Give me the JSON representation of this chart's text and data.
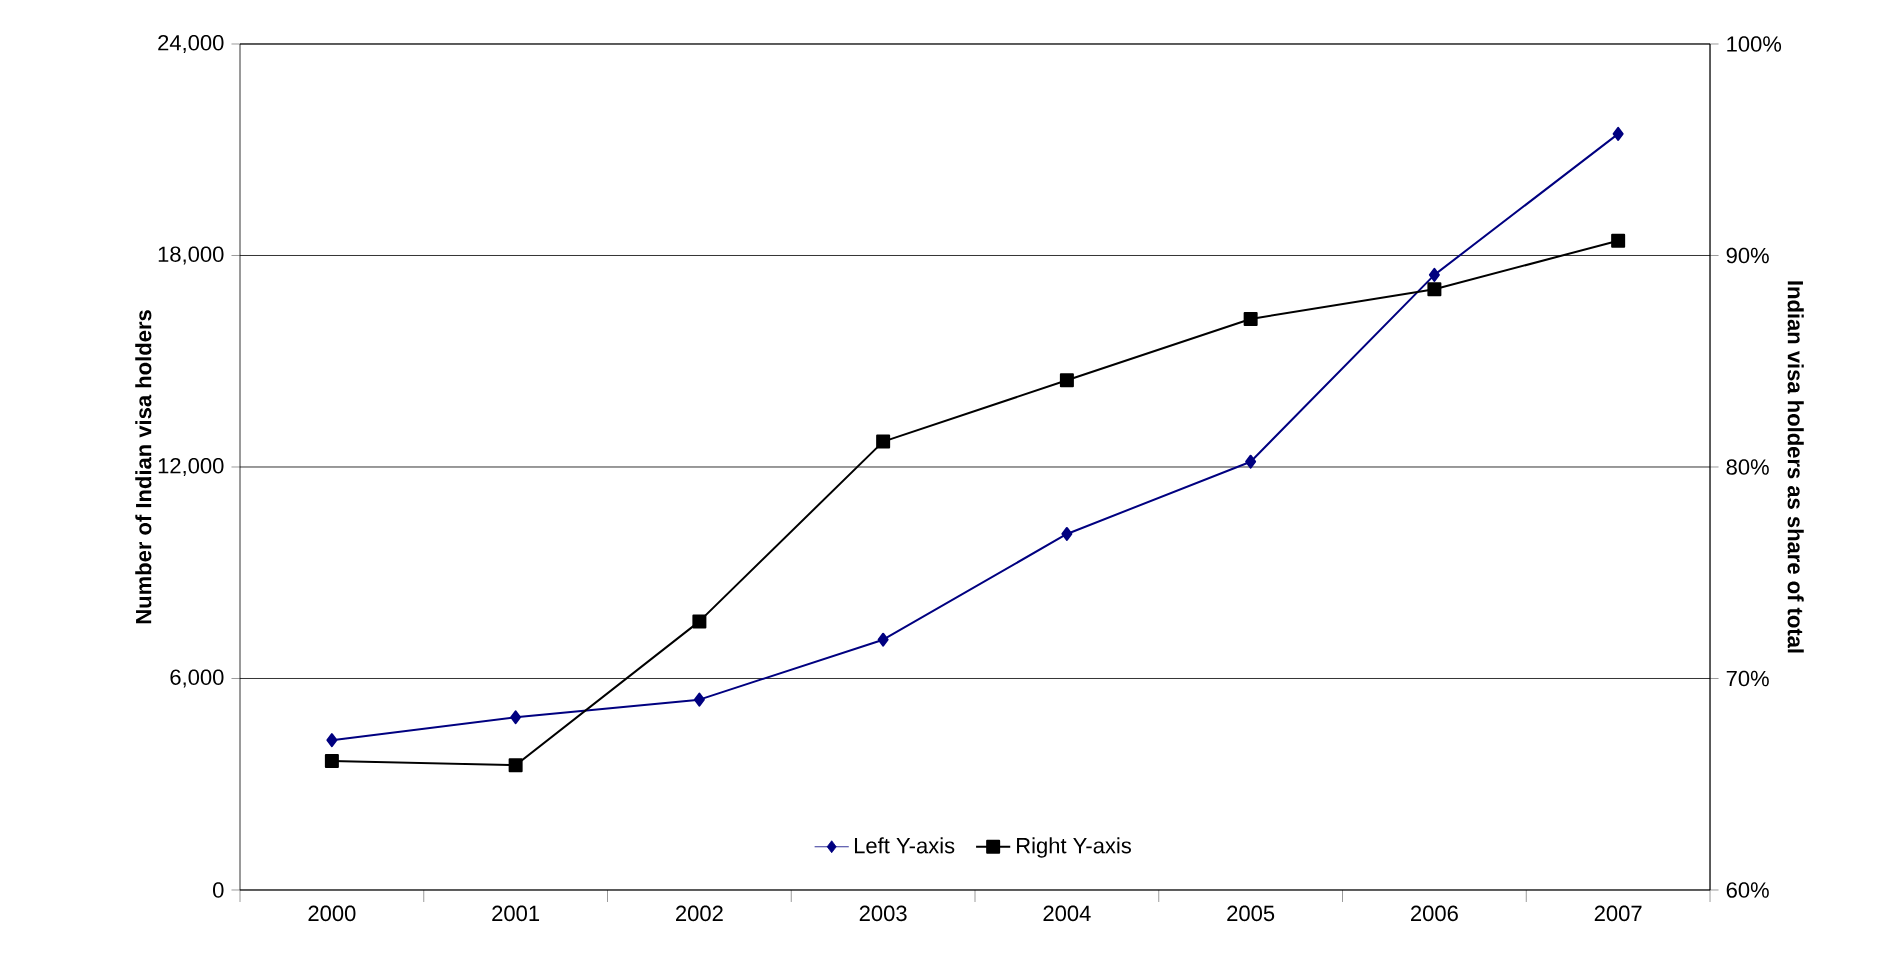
{
  "chart_data": {
    "type": "line",
    "categories": [
      "2000",
      "2001",
      "2002",
      "2003",
      "2004",
      "2005",
      "2006",
      "2007"
    ],
    "series": [
      {
        "name": "Left Y-axis",
        "color": "#000080",
        "marker": "diamond",
        "values": [
          4250,
          4900,
          5400,
          7100,
          10100,
          12150,
          17450,
          21450
        ]
      },
      {
        "name": "Right Y-axis",
        "color": "#000000",
        "marker": "square",
        "axis": "y2",
        "values": [
          66.1,
          65.9,
          72.7,
          81.2,
          84.1,
          87.0,
          88.4,
          90.7
        ]
      }
    ],
    "ylabel": "Number of Indian visa holders",
    "y2label": "Indian visa holders as share of total",
    "ylim": [
      0,
      24000
    ],
    "yticks": [
      {
        "value": 0,
        "label": "0"
      },
      {
        "value": 6000,
        "label": "6,000"
      },
      {
        "value": 12000,
        "label": "12,000"
      },
      {
        "value": 18000,
        "label": "18,000"
      },
      {
        "value": 24000,
        "label": "24,000"
      }
    ],
    "y2lim": [
      60,
      100
    ],
    "y2ticks": [
      {
        "value": 60,
        "label": "60%"
      },
      {
        "value": 70,
        "label": "70%"
      },
      {
        "value": 80,
        "label": "80%"
      },
      {
        "value": 90,
        "label": "90%"
      },
      {
        "value": 100,
        "label": "100%"
      }
    ],
    "grid": "y",
    "legend": "bottom"
  }
}
